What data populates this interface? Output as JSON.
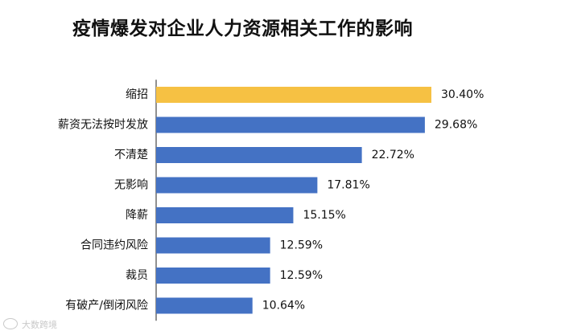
{
  "chart_data": {
    "type": "bar",
    "orientation": "horizontal",
    "title": "疫情爆发对企业人力资源相关工作的影响",
    "categories": [
      "缩招",
      "薪资无法按时发放",
      "不清楚",
      "无影响",
      "降薪",
      "合同违约风险",
      "裁员",
      "有破产/倒闭风险"
    ],
    "values": [
      30.4,
      29.68,
      22.72,
      17.81,
      15.15,
      12.59,
      12.59,
      10.64
    ],
    "value_labels": [
      "30.40%",
      "29.68%",
      "22.72%",
      "17.81%",
      "15.15%",
      "12.59%",
      "12.59%",
      "10.64%"
    ],
    "unit": "%",
    "xlim": [
      0,
      32
    ],
    "grid": false,
    "legend": "none",
    "colors": {
      "default": "#4472c4",
      "highlight": "#f6c143",
      "axis": "#222222"
    },
    "highlight_index": 0
  },
  "watermark": {
    "text": "大数跨境"
  }
}
